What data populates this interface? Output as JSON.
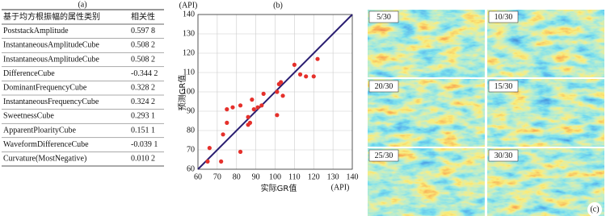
{
  "table": {
    "label": "(a)",
    "header": [
      "基于均方根振幅的属性类别",
      "相关性"
    ],
    "rows": [
      [
        "PoststackAmplitude",
        "0.597 8"
      ],
      [
        "InstantaneousAmplitudeCube",
        "0.508 2"
      ],
      [
        "InstantaneousAmplitudeCube",
        "0.508 2"
      ],
      [
        "DifferenceCube",
        "-0.344 2"
      ],
      [
        "DominantFrequencyCube",
        "0.328 2"
      ],
      [
        "InstantaneousFrequencyCube",
        "0.324 2"
      ],
      [
        "SweetnessCube",
        "0.293 1"
      ],
      [
        "ApparentPloarityCube",
        "0.151 1"
      ],
      [
        "WaveformDifferenceCube",
        "-0.039 1"
      ],
      [
        "Curvature(MostNegative)",
        "0.010 2"
      ]
    ]
  },
  "chart_data": {
    "type": "scatter",
    "title": "(b)",
    "x_unit": "(API)",
    "y_unit": "(API)",
    "xlabel": "实际GR值",
    "ylabel": "预测GR值",
    "xlim": [
      60,
      140
    ],
    "ylim": [
      60,
      140
    ],
    "xticks": [
      60,
      70,
      80,
      90,
      100,
      110,
      120,
      130,
      140
    ],
    "yticks": [
      60,
      70,
      80,
      90,
      100,
      110,
      120,
      130,
      140
    ],
    "grid": true,
    "x": [
      66,
      65,
      72,
      82,
      73,
      75,
      75,
      78,
      82,
      86,
      86,
      87,
      88,
      89,
      91,
      93,
      94,
      101,
      101,
      102,
      103,
      104,
      110,
      113,
      116,
      120,
      122
    ],
    "values": [
      71,
      64,
      64,
      69,
      78,
      84,
      91,
      92,
      93,
      87,
      83,
      84,
      96,
      91,
      92,
      93,
      99,
      88,
      100,
      104,
      105,
      98,
      114,
      109,
      108,
      108,
      117
    ],
    "color": "#e5302b",
    "reference_line_color": "#2b1f72"
  },
  "panels": {
    "label": "(c)",
    "items": [
      "5/30",
      "10/30",
      "20/30",
      "15/30",
      "25/30",
      "30/30"
    ]
  }
}
